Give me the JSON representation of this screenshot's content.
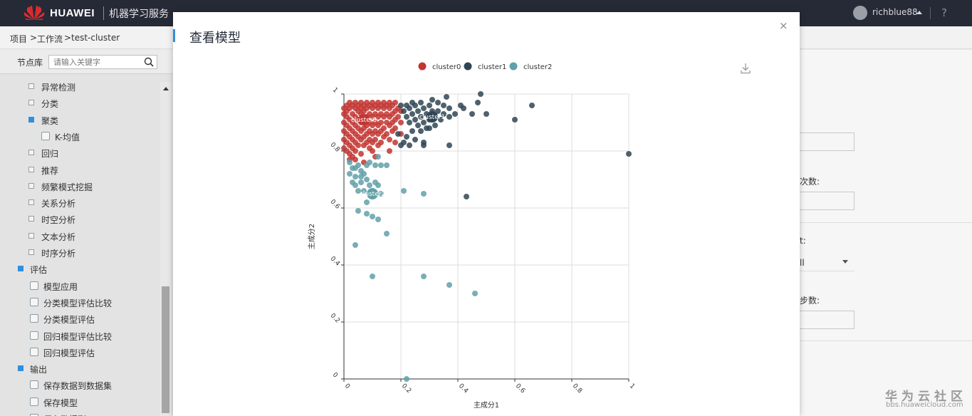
{
  "topbar": {
    "brand": "HUAWEI",
    "service": "机器学习服务",
    "user": "richblue88",
    "help": "?"
  },
  "breadcrumb": [
    "项目",
    ">",
    "工作流",
    ">",
    "test-cluster"
  ],
  "sidebar": {
    "title": "节点库",
    "search_placeholder": "请输入关键字",
    "items": [
      {
        "label": "异常检测",
        "type": "group",
        "open": false
      },
      {
        "label": "分类",
        "type": "group",
        "open": false
      },
      {
        "label": "聚类",
        "type": "group",
        "open": true
      },
      {
        "label": "K-均值",
        "type": "leaf"
      },
      {
        "label": "回归",
        "type": "group",
        "open": false
      },
      {
        "label": "推荐",
        "type": "group",
        "open": false
      },
      {
        "label": "频繁模式挖掘",
        "type": "group",
        "open": false
      },
      {
        "label": "关系分析",
        "type": "group",
        "open": false
      },
      {
        "label": "时空分析",
        "type": "group",
        "open": false
      },
      {
        "label": "文本分析",
        "type": "group",
        "open": false
      },
      {
        "label": "时序分析",
        "type": "group",
        "open": false
      },
      {
        "label": "评估",
        "type": "root",
        "open": true
      },
      {
        "label": "模型应用",
        "type": "leaf"
      },
      {
        "label": "分类模型评估比较",
        "type": "leaf"
      },
      {
        "label": "分类模型评估",
        "type": "leaf"
      },
      {
        "label": "回归模型评估比较",
        "type": "leaf"
      },
      {
        "label": "回归模型评估",
        "type": "leaf"
      },
      {
        "label": "输出",
        "type": "root",
        "open": true
      },
      {
        "label": "保存数据到数据集",
        "type": "leaf"
      },
      {
        "label": "保存模型",
        "type": "leaf"
      },
      {
        "label": "保存数据到OBS",
        "type": "leaf"
      }
    ]
  },
  "background_form": {
    "label_iterations": "次数:",
    "label_select": "t:",
    "select_value": "ll",
    "label_steps": "步数:"
  },
  "watermark": {
    "line1": "华为云社区",
    "line2": "bbs.huaweicloud.com"
  },
  "modal": {
    "title": "查看模型",
    "close": "×"
  },
  "colors": {
    "cluster0": "#c23531",
    "cluster1": "#2f4554",
    "cluster2": "#61a0a8",
    "accent": "#2f8fde"
  },
  "chart_data": {
    "type": "scatter",
    "title": "",
    "xlabel": "主成分1",
    "ylabel": "主成分2",
    "xlim": [
      0,
      1
    ],
    "ylim": [
      0,
      1
    ],
    "xticks": [
      "0",
      "0.2",
      "0.4",
      "0.6",
      "0.8",
      "1"
    ],
    "yticks": [
      "0",
      "0.2",
      "0.4",
      "0.6",
      "0.8",
      "1"
    ],
    "grid": true,
    "legend": "top-center",
    "series": [
      {
        "name": "cluster0",
        "center_label": "cluster0",
        "center": [
          0.07,
          0.91
        ],
        "points": [
          [
            0.0,
            0.95
          ],
          [
            0.0,
            0.93
          ],
          [
            0.0,
            0.9
          ],
          [
            0.0,
            0.87
          ],
          [
            0.0,
            0.84
          ],
          [
            0.0,
            0.81
          ],
          [
            0.01,
            0.96
          ],
          [
            0.01,
            0.94
          ],
          [
            0.01,
            0.92
          ],
          [
            0.01,
            0.89
          ],
          [
            0.01,
            0.86
          ],
          [
            0.01,
            0.83
          ],
          [
            0.01,
            0.8
          ],
          [
            0.02,
            0.97
          ],
          [
            0.02,
            0.95
          ],
          [
            0.02,
            0.91
          ],
          [
            0.02,
            0.88
          ],
          [
            0.02,
            0.85
          ],
          [
            0.02,
            0.82
          ],
          [
            0.02,
            0.79
          ],
          [
            0.03,
            0.96
          ],
          [
            0.03,
            0.93
          ],
          [
            0.03,
            0.9
          ],
          [
            0.03,
            0.87
          ],
          [
            0.03,
            0.84
          ],
          [
            0.03,
            0.81
          ],
          [
            0.03,
            0.78
          ],
          [
            0.04,
            0.97
          ],
          [
            0.04,
            0.95
          ],
          [
            0.04,
            0.92
          ],
          [
            0.04,
            0.89
          ],
          [
            0.04,
            0.86
          ],
          [
            0.04,
            0.83
          ],
          [
            0.04,
            0.8
          ],
          [
            0.05,
            0.96
          ],
          [
            0.05,
            0.94
          ],
          [
            0.05,
            0.91
          ],
          [
            0.05,
            0.88
          ],
          [
            0.05,
            0.85
          ],
          [
            0.05,
            0.82
          ],
          [
            0.06,
            0.97
          ],
          [
            0.06,
            0.95
          ],
          [
            0.06,
            0.93
          ],
          [
            0.06,
            0.9
          ],
          [
            0.06,
            0.87
          ],
          [
            0.06,
            0.84
          ],
          [
            0.07,
            0.96
          ],
          [
            0.07,
            0.94
          ],
          [
            0.07,
            0.91
          ],
          [
            0.07,
            0.88
          ],
          [
            0.07,
            0.85
          ],
          [
            0.07,
            0.82
          ],
          [
            0.08,
            0.97
          ],
          [
            0.08,
            0.95
          ],
          [
            0.08,
            0.92
          ],
          [
            0.08,
            0.89
          ],
          [
            0.08,
            0.86
          ],
          [
            0.08,
            0.83
          ],
          [
            0.09,
            0.96
          ],
          [
            0.09,
            0.93
          ],
          [
            0.09,
            0.9
          ],
          [
            0.09,
            0.87
          ],
          [
            0.09,
            0.84
          ],
          [
            0.1,
            0.97
          ],
          [
            0.1,
            0.95
          ],
          [
            0.1,
            0.92
          ],
          [
            0.1,
            0.89
          ],
          [
            0.1,
            0.86
          ],
          [
            0.1,
            0.83
          ],
          [
            0.1,
            0.8
          ],
          [
            0.11,
            0.96
          ],
          [
            0.11,
            0.93
          ],
          [
            0.11,
            0.9
          ],
          [
            0.11,
            0.87
          ],
          [
            0.11,
            0.84
          ],
          [
            0.12,
            0.97
          ],
          [
            0.12,
            0.95
          ],
          [
            0.12,
            0.92
          ],
          [
            0.12,
            0.89
          ],
          [
            0.12,
            0.86
          ],
          [
            0.12,
            0.82
          ],
          [
            0.13,
            0.96
          ],
          [
            0.13,
            0.93
          ],
          [
            0.13,
            0.9
          ],
          [
            0.13,
            0.87
          ],
          [
            0.14,
            0.97
          ],
          [
            0.14,
            0.95
          ],
          [
            0.14,
            0.92
          ],
          [
            0.14,
            0.88
          ],
          [
            0.14,
            0.85
          ],
          [
            0.15,
            0.96
          ],
          [
            0.15,
            0.93
          ],
          [
            0.15,
            0.9
          ],
          [
            0.15,
            0.86
          ],
          [
            0.16,
            0.97
          ],
          [
            0.16,
            0.95
          ],
          [
            0.16,
            0.92
          ],
          [
            0.16,
            0.89
          ],
          [
            0.16,
            0.84
          ],
          [
            0.17,
            0.96
          ],
          [
            0.17,
            0.93
          ],
          [
            0.17,
            0.9
          ],
          [
            0.17,
            0.87
          ],
          [
            0.18,
            0.97
          ],
          [
            0.18,
            0.94
          ],
          [
            0.18,
            0.91
          ],
          [
            0.18,
            0.88
          ],
          [
            0.19,
            0.95
          ],
          [
            0.19,
            0.92
          ],
          [
            0.2,
            0.94
          ],
          [
            0.2,
            0.9
          ],
          [
            0.02,
            0.77
          ],
          [
            0.04,
            0.77
          ],
          [
            0.06,
            0.79
          ],
          [
            0.09,
            0.81
          ],
          [
            0.13,
            0.83
          ],
          [
            0.16,
            0.8
          ],
          [
            0.18,
            0.83
          ],
          [
            0.2,
            0.86
          ],
          [
            0.07,
            0.76
          ],
          [
            0.11,
            0.78
          ]
        ]
      },
      {
        "name": "cluster1",
        "center_label": "cluster1",
        "center": [
          0.31,
          0.92
        ],
        "points": [
          [
            0.2,
            0.96
          ],
          [
            0.21,
            0.94
          ],
          [
            0.22,
            0.96
          ],
          [
            0.22,
            0.92
          ],
          [
            0.23,
            0.95
          ],
          [
            0.23,
            0.9
          ],
          [
            0.24,
            0.97
          ],
          [
            0.24,
            0.93
          ],
          [
            0.25,
            0.96
          ],
          [
            0.25,
            0.91
          ],
          [
            0.26,
            0.94
          ],
          [
            0.26,
            0.89
          ],
          [
            0.27,
            0.97
          ],
          [
            0.27,
            0.92
          ],
          [
            0.28,
            0.95
          ],
          [
            0.28,
            0.9
          ],
          [
            0.29,
            0.93
          ],
          [
            0.29,
            0.88
          ],
          [
            0.3,
            0.96
          ],
          [
            0.3,
            0.91
          ],
          [
            0.31,
            0.98
          ],
          [
            0.31,
            0.94
          ],
          [
            0.32,
            0.92
          ],
          [
            0.32,
            0.89
          ],
          [
            0.33,
            0.97
          ],
          [
            0.33,
            0.94
          ],
          [
            0.34,
            0.91
          ],
          [
            0.35,
            0.96
          ],
          [
            0.35,
            0.93
          ],
          [
            0.36,
            0.99
          ],
          [
            0.37,
            0.95
          ],
          [
            0.37,
            0.92
          ],
          [
            0.39,
            0.93
          ],
          [
            0.41,
            0.96
          ],
          [
            0.42,
            0.95
          ],
          [
            0.45,
            0.93
          ],
          [
            0.47,
            0.97
          ],
          [
            0.48,
            1.0
          ],
          [
            0.5,
            0.93
          ],
          [
            0.6,
            0.91
          ],
          [
            0.66,
            0.96
          ],
          [
            1.0,
            0.79
          ],
          [
            0.19,
            0.86
          ],
          [
            0.21,
            0.83
          ],
          [
            0.22,
            0.85
          ],
          [
            0.23,
            0.82
          ],
          [
            0.25,
            0.84
          ],
          [
            0.27,
            0.87
          ],
          [
            0.28,
            0.83
          ],
          [
            0.3,
            0.88
          ],
          [
            0.37,
            0.82
          ],
          [
            0.43,
            0.64
          ],
          [
            0.24,
            0.87
          ],
          [
            0.28,
            0.82
          ],
          [
            0.2,
            0.82
          ]
        ]
      },
      {
        "name": "cluster2",
        "center_label": "cluster2",
        "center": [
          0.1,
          0.65
        ],
        "points": [
          [
            0.02,
            0.76
          ],
          [
            0.03,
            0.74
          ],
          [
            0.02,
            0.72
          ],
          [
            0.04,
            0.71
          ],
          [
            0.05,
            0.75
          ],
          [
            0.06,
            0.73
          ],
          [
            0.07,
            0.72
          ],
          [
            0.08,
            0.75
          ],
          [
            0.09,
            0.76
          ],
          [
            0.11,
            0.75
          ],
          [
            0.12,
            0.78
          ],
          [
            0.13,
            0.75
          ],
          [
            0.03,
            0.69
          ],
          [
            0.04,
            0.68
          ],
          [
            0.06,
            0.69
          ],
          [
            0.08,
            0.7
          ],
          [
            0.09,
            0.68
          ],
          [
            0.05,
            0.66
          ],
          [
            0.07,
            0.66
          ],
          [
            0.11,
            0.69
          ],
          [
            0.12,
            0.68
          ],
          [
            0.08,
            0.62
          ],
          [
            0.05,
            0.59
          ],
          [
            0.08,
            0.58
          ],
          [
            0.1,
            0.57
          ],
          [
            0.12,
            0.56
          ],
          [
            0.13,
            0.65
          ],
          [
            0.15,
            0.75
          ],
          [
            0.21,
            0.66
          ],
          [
            0.28,
            0.65
          ],
          [
            0.04,
            0.47
          ],
          [
            0.15,
            0.51
          ],
          [
            0.1,
            0.36
          ],
          [
            0.28,
            0.36
          ],
          [
            0.37,
            0.33
          ],
          [
            0.46,
            0.3
          ],
          [
            0.22,
            0.0
          ],
          [
            0.04,
            0.74
          ],
          [
            0.06,
            0.71
          ]
        ]
      }
    ]
  }
}
